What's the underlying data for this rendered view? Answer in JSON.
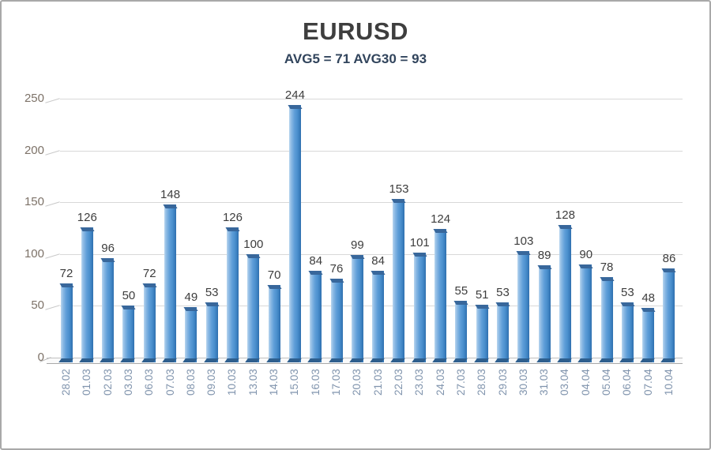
{
  "chart_data": {
    "type": "bar",
    "title": "EURUSD",
    "subtitle": "AVG5 = 71 AVG30 = 93",
    "categories": [
      "28.02",
      "01.03",
      "02.03",
      "03.03",
      "06.03",
      "07.03",
      "08.03",
      "09.03",
      "10.03",
      "13.03",
      "14.03",
      "15.03",
      "16.03",
      "17.03",
      "20.03",
      "21.03",
      "22.03",
      "23.03",
      "24.03",
      "27.03",
      "28.03",
      "29.03",
      "30.03",
      "31.03",
      "03.04",
      "04.04",
      "05.04",
      "06.04",
      "07.04",
      "10.04"
    ],
    "values": [
      72,
      126,
      96,
      50,
      72,
      148,
      49,
      53,
      126,
      100,
      70,
      244,
      84,
      76,
      99,
      84,
      153,
      101,
      124,
      55,
      51,
      53,
      103,
      89,
      128,
      90,
      78,
      53,
      48,
      86
    ],
    "xlabel": "",
    "ylabel": "",
    "ylim": [
      0,
      250
    ],
    "yticks": [
      0,
      50,
      100,
      150,
      200,
      250
    ],
    "grid": true,
    "legend": false,
    "value_labels": true,
    "colors": {
      "bar_face": "#5b9bd5",
      "bar_side": "#2f6fae",
      "bar_cap": "#38679b",
      "title_text": "#3e3e3e",
      "subtitle_text": "#31445c",
      "value_label_text": "#3d3d3d",
      "x_tick_text": "#8094ad",
      "y_tick_text": "#7d7268",
      "gridline": "#d8d8d8",
      "frame_border": "#a9a9a9"
    }
  }
}
